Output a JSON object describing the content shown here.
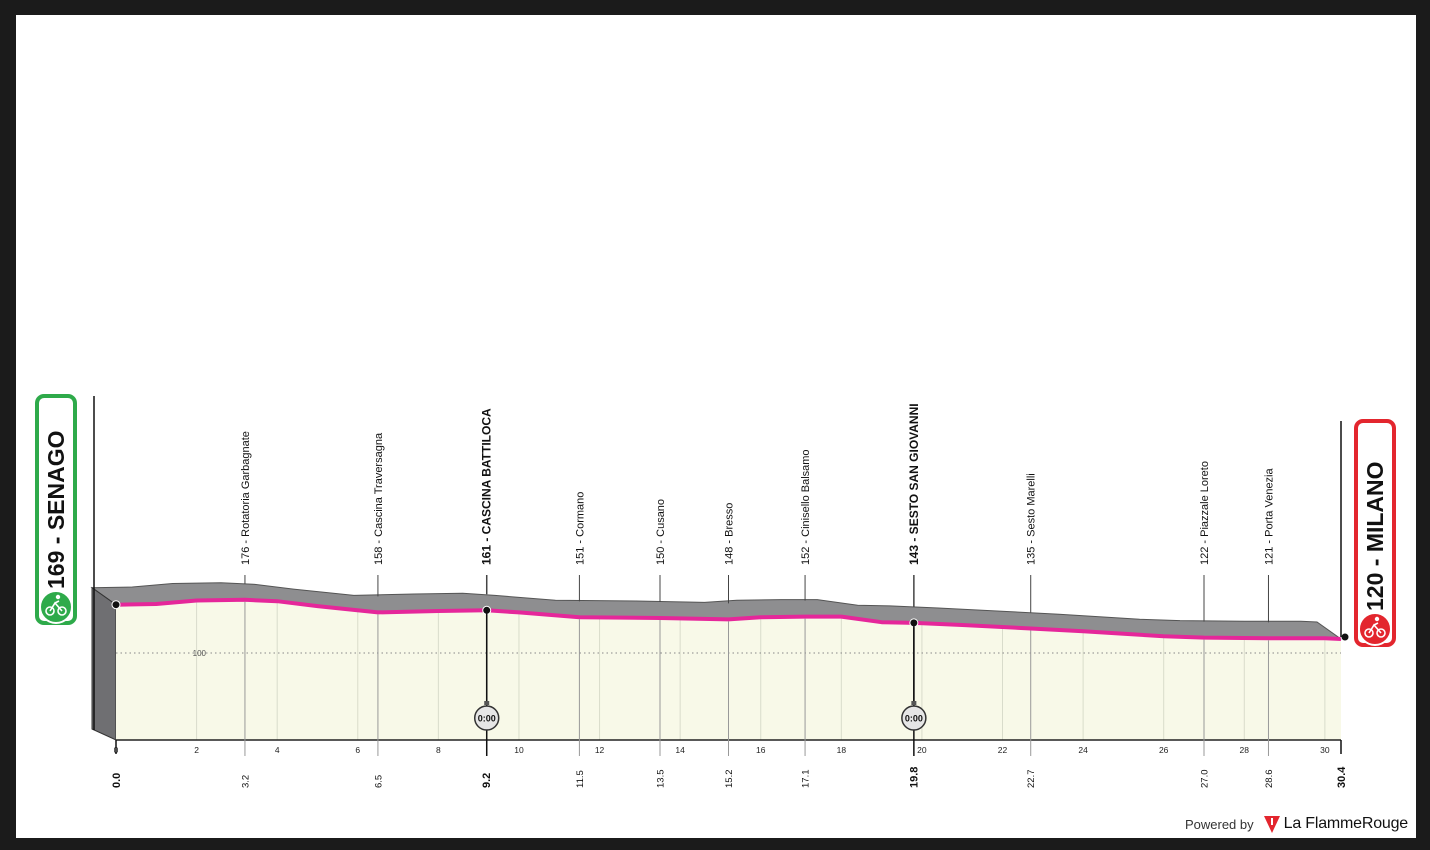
{
  "chart_data": {
    "type": "area",
    "title": "",
    "xlabel": "",
    "ylabel": "",
    "xlim": [
      0,
      30.4
    ],
    "ylim": [
      60,
      200
    ],
    "x_ticks": [
      0,
      2,
      4,
      6,
      8,
      10,
      12,
      14,
      16,
      18,
      20,
      22,
      24,
      26,
      28,
      30
    ],
    "y_ticks": [
      100
    ],
    "grid": "dotted reference line at 100",
    "profile": {
      "x": [
        0,
        1.0,
        2.0,
        3.2,
        4.0,
        5.0,
        6.5,
        8.0,
        9.2,
        10.0,
        11.5,
        13.5,
        15.2,
        16.0,
        17.1,
        18.0,
        19.0,
        19.8,
        21.0,
        22.7,
        24.0,
        26.0,
        27.0,
        28.6,
        30.0,
        30.4
      ],
      "y": [
        169,
        170,
        175,
        176,
        174,
        167,
        158,
        160,
        161,
        158,
        151,
        150,
        148,
        151,
        152,
        152,
        144,
        143,
        140,
        135,
        131,
        124,
        122,
        121,
        121,
        120
      ]
    },
    "start": {
      "km": "0.0",
      "altitude": "169",
      "name": "SENAGO",
      "label": "169 - SENAGO"
    },
    "finish": {
      "km": "30.4",
      "altitude": "120",
      "name": "MILANO",
      "label": "120 - MILANO"
    },
    "waypoints": [
      {
        "km": 3.2,
        "km_label": "3.2",
        "alt": 176,
        "label": "176 - Rotatoria Garbagnate",
        "bold": false
      },
      {
        "km": 6.5,
        "km_label": "6.5",
        "alt": 158,
        "label": "158 - Cascina Traversagna",
        "bold": false
      },
      {
        "km": 9.2,
        "km_label": "9.2",
        "alt": 161,
        "label": "161 - CASCINA BATTILOCA",
        "bold": true
      },
      {
        "km": 11.5,
        "km_label": "11.5",
        "alt": 151,
        "label": "151 - Cormano",
        "bold": false
      },
      {
        "km": 13.5,
        "km_label": "13.5",
        "alt": 150,
        "label": "150 - Cusano",
        "bold": false
      },
      {
        "km": 15.2,
        "km_label": "15.2",
        "alt": 148,
        "label": "148 - Bresso",
        "bold": false
      },
      {
        "km": 17.1,
        "km_label": "17.1",
        "alt": 152,
        "label": "152 - Cinisello Balsamo",
        "bold": false
      },
      {
        "km": 19.8,
        "km_label": "19.8",
        "alt": 143,
        "label": "143 - SESTO SAN GIOVANNI",
        "bold": true
      },
      {
        "km": 22.7,
        "km_label": "22.7",
        "alt": 135,
        "label": "135 - Sesto Marelli",
        "bold": false
      },
      {
        "km": 27.0,
        "km_label": "27.0",
        "alt": 122,
        "label": "122 - Piazzale Loreto",
        "bold": false
      },
      {
        "km": 28.6,
        "km_label": "28.6",
        "alt": 121,
        "label": "121 - Porta Venezia",
        "bold": false
      }
    ],
    "time_checks": [
      {
        "km": 9.2,
        "label": "0:00"
      },
      {
        "km": 19.8,
        "label": "0:00"
      }
    ]
  },
  "colors": {
    "route": "#e5279a",
    "area_fill": "#f8f9e8",
    "side_fill": "#8e8e90",
    "start_badge": "#2eaa4a",
    "finish_badge": "#e3262e"
  },
  "icons": {
    "start": "bicycle-icon",
    "finish": "bicycle-icon",
    "time_check": "stopwatch-icon"
  },
  "footer": {
    "powered_by": "Powered by",
    "brand": "La FlammeRouge"
  }
}
